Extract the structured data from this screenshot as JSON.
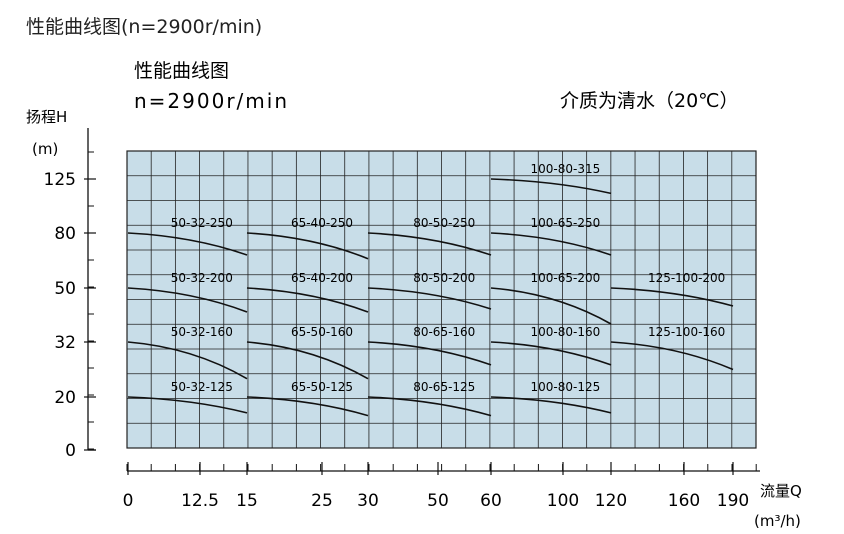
{
  "page": {
    "title": "性能曲线图(n=2900r/min)"
  },
  "figure": {
    "title": "性能曲线图",
    "speed": "n=2900r/min",
    "medium": "介质为清水（20℃）",
    "y_label": "扬程H",
    "y_unit": "(m)",
    "x_label": "流量Q",
    "x_unit": "(m³/h)",
    "panel_color": "#c8dde8",
    "grid_color": "#222222",
    "curve_color": "#111111"
  },
  "chart_data": {
    "type": "line",
    "x_ticks": [
      "0",
      "12.5",
      "15",
      "25",
      "30",
      "50",
      "60",
      "100",
      "120",
      "160",
      "190"
    ],
    "y_ticks": [
      "0",
      "20",
      "32",
      "50",
      "80",
      "125"
    ],
    "series": [
      {
        "name": "100-80-315",
        "h": [
          125,
          113
        ],
        "x": [
          60,
          120
        ]
      },
      {
        "name": "50-32-250",
        "h": [
          80,
          68
        ],
        "x": [
          0,
          15
        ]
      },
      {
        "name": "65-40-250",
        "h": [
          80,
          66
        ],
        "x": [
          15,
          30
        ]
      },
      {
        "name": "80-50-250",
        "h": [
          80,
          68
        ],
        "x": [
          30,
          60
        ]
      },
      {
        "name": "100-65-250",
        "h": [
          80,
          68
        ],
        "x": [
          60,
          120
        ]
      },
      {
        "name": "50-32-200",
        "h": [
          50,
          42
        ],
        "x": [
          0,
          15
        ]
      },
      {
        "name": "65-40-200",
        "h": [
          50,
          42
        ],
        "x": [
          15,
          30
        ]
      },
      {
        "name": "80-50-200",
        "h": [
          50,
          43
        ],
        "x": [
          30,
          60
        ]
      },
      {
        "name": "100-65-200",
        "h": [
          50,
          38
        ],
        "x": [
          60,
          120
        ]
      },
      {
        "name": "125-100-200",
        "h": [
          50,
          44
        ],
        "x": [
          120,
          190
        ]
      },
      {
        "name": "50-32-160",
        "h": [
          32,
          24
        ],
        "x": [
          0,
          15
        ]
      },
      {
        "name": "65-50-160",
        "h": [
          32,
          24
        ],
        "x": [
          15,
          30
        ]
      },
      {
        "name": "80-65-160",
        "h": [
          32,
          27
        ],
        "x": [
          30,
          60
        ]
      },
      {
        "name": "100-80-160",
        "h": [
          32,
          27
        ],
        "x": [
          60,
          120
        ]
      },
      {
        "name": "125-100-160",
        "h": [
          32,
          26
        ],
        "x": [
          120,
          190
        ]
      },
      {
        "name": "50-32-125",
        "h": [
          20,
          14
        ],
        "x": [
          0,
          15
        ]
      },
      {
        "name": "65-50-125",
        "h": [
          20,
          13
        ],
        "x": [
          15,
          30
        ]
      },
      {
        "name": "80-65-125",
        "h": [
          20,
          13
        ],
        "x": [
          30,
          60
        ]
      },
      {
        "name": "100-80-125",
        "h": [
          20,
          14
        ],
        "x": [
          60,
          120
        ]
      }
    ]
  }
}
